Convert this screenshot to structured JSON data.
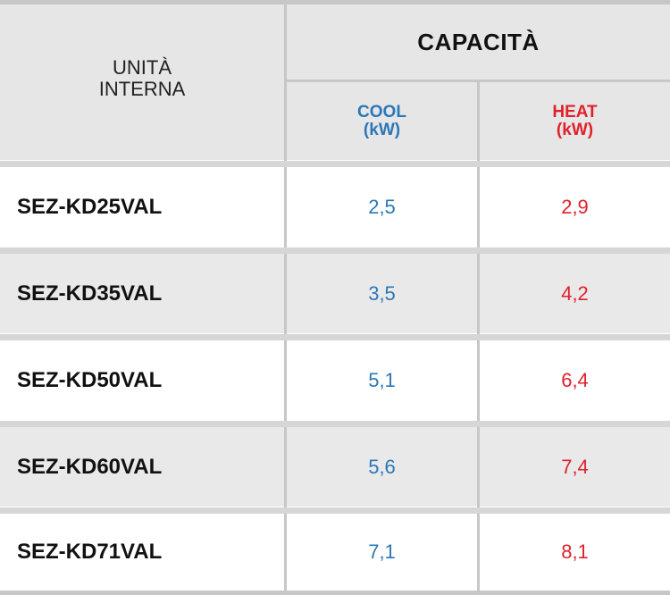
{
  "header": {
    "unit_label_line1": "UNITÀ",
    "unit_label_line2": "INTERNA",
    "capacity_title": "CAPACITÀ",
    "cool_label": "COOL",
    "cool_unit": "(kW)",
    "heat_label": "HEAT",
    "heat_unit": "(kW)"
  },
  "colors": {
    "cool": "#2a78b8",
    "heat": "#e0212b",
    "header_bg": "#e6e6e7",
    "grid_line": "#c7c7c8"
  },
  "rows": [
    {
      "model": "SEZ-KD25VAL",
      "cool": "2,5",
      "heat": "2,9"
    },
    {
      "model": "SEZ-KD35VAL",
      "cool": "3,5",
      "heat": "4,2"
    },
    {
      "model": "SEZ-KD50VAL",
      "cool": "5,1",
      "heat": "6,4"
    },
    {
      "model": "SEZ-KD60VAL",
      "cool": "5,6",
      "heat": "7,4"
    },
    {
      "model": "SEZ-KD71VAL",
      "cool": "7,1",
      "heat": "8,1"
    }
  ]
}
